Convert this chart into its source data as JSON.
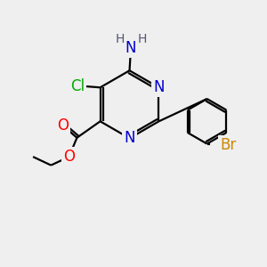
{
  "bg_color": "#efefef",
  "atom_colors": {
    "N": "#0000cd",
    "O": "#ff0000",
    "Cl": "#00aa00",
    "Br": "#cc8800",
    "C": "#000000",
    "H": "#555577"
  },
  "bond_color": "#000000",
  "bond_width": 1.6,
  "font_size_atoms": 12,
  "font_size_small": 10
}
